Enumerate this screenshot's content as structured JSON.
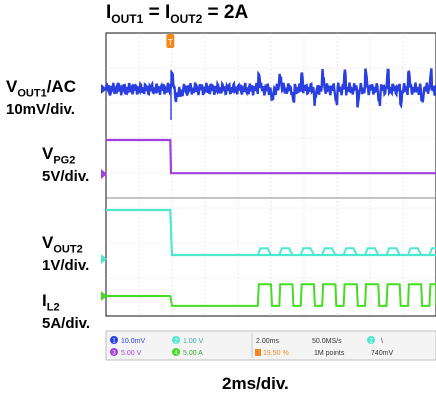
{
  "title": {
    "prefix": "I",
    "sub1": "OUT1",
    "mid": " = I",
    "sub2": "OUT2",
    "suffix": " = 2A"
  },
  "x_axis_label": "2ms/div.",
  "trace_labels": [
    {
      "id": "vout1",
      "name": "V",
      "sub": "OUT1",
      "suffix": "/AC",
      "scale": "10mV/div."
    },
    {
      "id": "vpg2",
      "name": "V",
      "sub": "PG2",
      "suffix": "",
      "scale": "5V/div."
    },
    {
      "id": "vout2",
      "name": "V",
      "sub": "OUT2",
      "suffix": "",
      "scale": "1V/div."
    },
    {
      "id": "il2",
      "name": "I",
      "sub": "L2",
      "suffix": "",
      "scale": "5A/div."
    }
  ],
  "colors": {
    "ch1": "#2a3fe0",
    "ch2": "#4ee8d0",
    "ch3": "#a040e0",
    "ch4": "#44dd22",
    "trigger": "#f08a20",
    "grid": "#bbbbbb",
    "background": "#ffffff"
  },
  "status_bar": {
    "ch1": {
      "num": "1",
      "value": "10.0mV"
    },
    "ch2": {
      "num": "2",
      "value": "1.00 V"
    },
    "ch3": {
      "num": "3",
      "value": "5.00 V"
    },
    "ch4": {
      "num": "4",
      "value": "5.00 A"
    },
    "timebase": "2.00ms",
    "trigger_pos": "19.50 %",
    "sample_rate": "50.0MS/s",
    "record_length": "1M points",
    "trigger_level": "740mV"
  },
  "chart_data": {
    "type": "line",
    "x_unit": "div",
    "x_range": [
      0,
      10
    ],
    "trigger_x": 1.95,
    "series": [
      {
        "name": "VOUT1/AC",
        "channel": 1,
        "description_points": [
          [
            0,
            0
          ],
          [
            1.95,
            0
          ],
          [
            2.0,
            1.2
          ],
          [
            2.1,
            -0.6
          ],
          [
            2.4,
            0
          ],
          [
            4.6,
            0
          ],
          [
            10,
            0
          ]
        ],
        "ripple_events_start": 4.6,
        "ripple_period": 0.65
      },
      {
        "name": "VPG2",
        "channel": 3,
        "points": [
          [
            0,
            5.5
          ],
          [
            1.95,
            5.5
          ],
          [
            1.97,
            4.05
          ],
          [
            10,
            4.05
          ]
        ]
      },
      {
        "name": "VOUT2",
        "channel": 2,
        "points": [
          [
            0,
            2.9
          ],
          [
            1.95,
            2.9
          ],
          [
            2.0,
            1.55
          ],
          [
            10,
            1.55
          ]
        ],
        "ripple_events_start": 4.6,
        "ripple_period": 0.65
      },
      {
        "name": "IL2",
        "channel": 4,
        "points": [
          [
            0,
            1.1
          ],
          [
            1.95,
            1.1
          ],
          [
            2.0,
            0.55
          ],
          [
            4.6,
            0.55
          ],
          [
            10,
            0.55
          ]
        ],
        "pulse_high": 1.75,
        "pulse_start": 4.6,
        "pulse_period": 0.65,
        "pulse_width": 0.4
      }
    ]
  }
}
